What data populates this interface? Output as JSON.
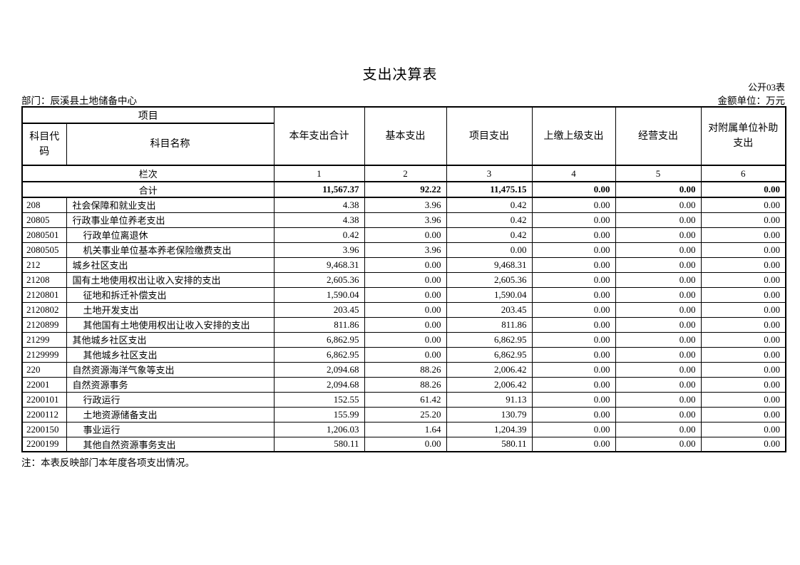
{
  "page": {
    "title": "支出决算表",
    "form_code": "公开03表",
    "department": "部门：辰溪县土地储备中心",
    "unit": "金额单位：万元",
    "note": "注：本表反映部门本年度各项支出情况。"
  },
  "table": {
    "header": {
      "group_label": "项目",
      "code_label": "科目代码",
      "name_label": "科目名称",
      "columns": [
        "本年支出合计",
        "基本支出",
        "项目支出",
        "上缴上级支出",
        "经营支出",
        "对附属单位补助支出"
      ]
    },
    "lanci_label": "栏次",
    "column_numbers": [
      "1",
      "2",
      "3",
      "4",
      "5",
      "6"
    ],
    "total_row": {
      "label": "合计",
      "values": [
        "11,567.37",
        "92.22",
        "11,475.15",
        "0.00",
        "0.00",
        "0.00"
      ]
    },
    "rows": [
      {
        "code": "208",
        "name": "社会保障和就业支出",
        "indent": 0,
        "values": [
          "4.38",
          "3.96",
          "0.42",
          "0.00",
          "0.00",
          "0.00"
        ]
      },
      {
        "code": "20805",
        "name": "行政事业单位养老支出",
        "indent": 0,
        "values": [
          "4.38",
          "3.96",
          "0.42",
          "0.00",
          "0.00",
          "0.00"
        ]
      },
      {
        "code": "2080501",
        "name": "行政单位离退休",
        "indent": 1,
        "values": [
          "0.42",
          "0.00",
          "0.42",
          "0.00",
          "0.00",
          "0.00"
        ]
      },
      {
        "code": "2080505",
        "name": "机关事业单位基本养老保险缴费支出",
        "indent": 1,
        "values": [
          "3.96",
          "3.96",
          "0.00",
          "0.00",
          "0.00",
          "0.00"
        ]
      },
      {
        "code": "212",
        "name": "城乡社区支出",
        "indent": 0,
        "values": [
          "9,468.31",
          "0.00",
          "9,468.31",
          "0.00",
          "0.00",
          "0.00"
        ]
      },
      {
        "code": "21208",
        "name": "国有土地使用权出让收入安排的支出",
        "indent": 0,
        "values": [
          "2,605.36",
          "0.00",
          "2,605.36",
          "0.00",
          "0.00",
          "0.00"
        ]
      },
      {
        "code": "2120801",
        "name": "征地和拆迁补偿支出",
        "indent": 1,
        "values": [
          "1,590.04",
          "0.00",
          "1,590.04",
          "0.00",
          "0.00",
          "0.00"
        ]
      },
      {
        "code": "2120802",
        "name": "土地开发支出",
        "indent": 1,
        "values": [
          "203.45",
          "0.00",
          "203.45",
          "0.00",
          "0.00",
          "0.00"
        ]
      },
      {
        "code": "2120899",
        "name": "其他国有土地使用权出让收入安排的支出",
        "indent": 1,
        "values": [
          "811.86",
          "0.00",
          "811.86",
          "0.00",
          "0.00",
          "0.00"
        ]
      },
      {
        "code": "21299",
        "name": "其他城乡社区支出",
        "indent": 0,
        "values": [
          "6,862.95",
          "0.00",
          "6,862.95",
          "0.00",
          "0.00",
          "0.00"
        ]
      },
      {
        "code": "2129999",
        "name": "其他城乡社区支出",
        "indent": 1,
        "values": [
          "6,862.95",
          "0.00",
          "6,862.95",
          "0.00",
          "0.00",
          "0.00"
        ]
      },
      {
        "code": "220",
        "name": "自然资源海洋气象等支出",
        "indent": 0,
        "values": [
          "2,094.68",
          "88.26",
          "2,006.42",
          "0.00",
          "0.00",
          "0.00"
        ]
      },
      {
        "code": "22001",
        "name": "自然资源事务",
        "indent": 0,
        "values": [
          "2,094.68",
          "88.26",
          "2,006.42",
          "0.00",
          "0.00",
          "0.00"
        ]
      },
      {
        "code": "2200101",
        "name": "行政运行",
        "indent": 1,
        "values": [
          "152.55",
          "61.42",
          "91.13",
          "0.00",
          "0.00",
          "0.00"
        ]
      },
      {
        "code": "2200112",
        "name": "土地资源储备支出",
        "indent": 1,
        "values": [
          "155.99",
          "25.20",
          "130.79",
          "0.00",
          "0.00",
          "0.00"
        ]
      },
      {
        "code": "2200150",
        "name": "事业运行",
        "indent": 1,
        "values": [
          "1,206.03",
          "1.64",
          "1,204.39",
          "0.00",
          "0.00",
          "0.00"
        ]
      },
      {
        "code": "2200199",
        "name": "其他自然资源事务支出",
        "indent": 1,
        "values": [
          "580.11",
          "0.00",
          "580.11",
          "0.00",
          "0.00",
          "0.00"
        ]
      }
    ]
  }
}
